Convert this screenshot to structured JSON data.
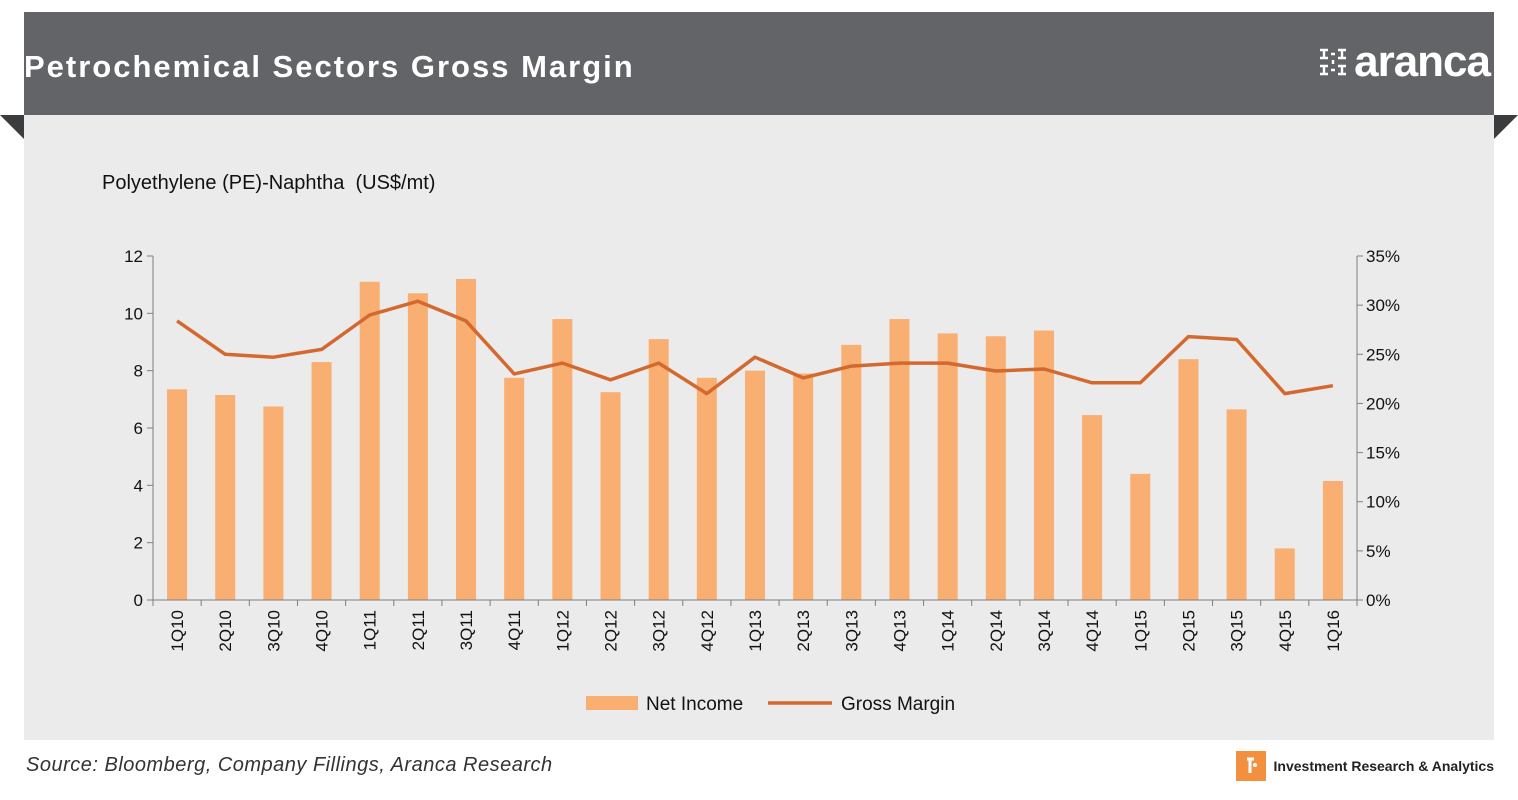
{
  "header": {
    "title": "Petrochemical Sectors Gross Margin",
    "logo_text": "aranca",
    "logo_icon": "aranca-logo-icon"
  },
  "colors": {
    "header_bg": "#636467",
    "panel_bg": "#ebebeb",
    "bar": "#f9ae72",
    "line": "#d3692f",
    "accent": "#f3903f"
  },
  "chart_data": {
    "type": "bar",
    "title": "Polyethylene (PE)-Naphtha  (US$/mt)",
    "categories": [
      "1Q10",
      "2Q10",
      "3Q10",
      "4Q10",
      "1Q11",
      "2Q11",
      "3Q11",
      "4Q11",
      "1Q12",
      "2Q12",
      "3Q12",
      "4Q12",
      "1Q13",
      "2Q13",
      "3Q13",
      "4Q13",
      "1Q14",
      "2Q14",
      "3Q14",
      "4Q14",
      "1Q15",
      "2Q15",
      "3Q15",
      "4Q15",
      "1Q16"
    ],
    "series": [
      {
        "name": "Net Income",
        "type": "bar",
        "axis": "left",
        "values": [
          7.35,
          7.15,
          6.75,
          8.3,
          11.1,
          10.7,
          11.2,
          7.75,
          9.8,
          7.25,
          9.1,
          7.75,
          8.0,
          7.9,
          8.9,
          9.8,
          9.3,
          9.2,
          9.4,
          6.45,
          4.4,
          8.4,
          6.65,
          1.8,
          4.15
        ]
      },
      {
        "name": "Gross Margin",
        "type": "line",
        "axis": "right",
        "values": [
          28.4,
          25.0,
          24.7,
          25.5,
          29.0,
          30.4,
          28.4,
          23.0,
          24.1,
          22.4,
          24.1,
          21.0,
          24.7,
          22.6,
          23.8,
          24.1,
          24.1,
          23.3,
          23.5,
          22.1,
          22.1,
          26.8,
          26.5,
          21.0,
          21.8
        ]
      }
    ],
    "left_axis": {
      "min": 0,
      "max": 12,
      "ticks": [
        "0",
        "2",
        "4",
        "6",
        "8",
        "10",
        "12"
      ]
    },
    "right_axis": {
      "min": 0,
      "max": 35,
      "ticks": [
        "0%",
        "5%",
        "10%",
        "15%",
        "20%",
        "25%",
        "30%",
        "35%"
      ]
    },
    "legend": {
      "position": "bottom",
      "items": [
        "Net Income",
        "Gross Margin"
      ]
    },
    "grid": false
  },
  "footer": {
    "source": "Source: Bloomberg, Company Fillings, Aranca Research",
    "brand_text": "Investment Research & Analytics",
    "brand_icon": "aranca-badge-icon"
  }
}
